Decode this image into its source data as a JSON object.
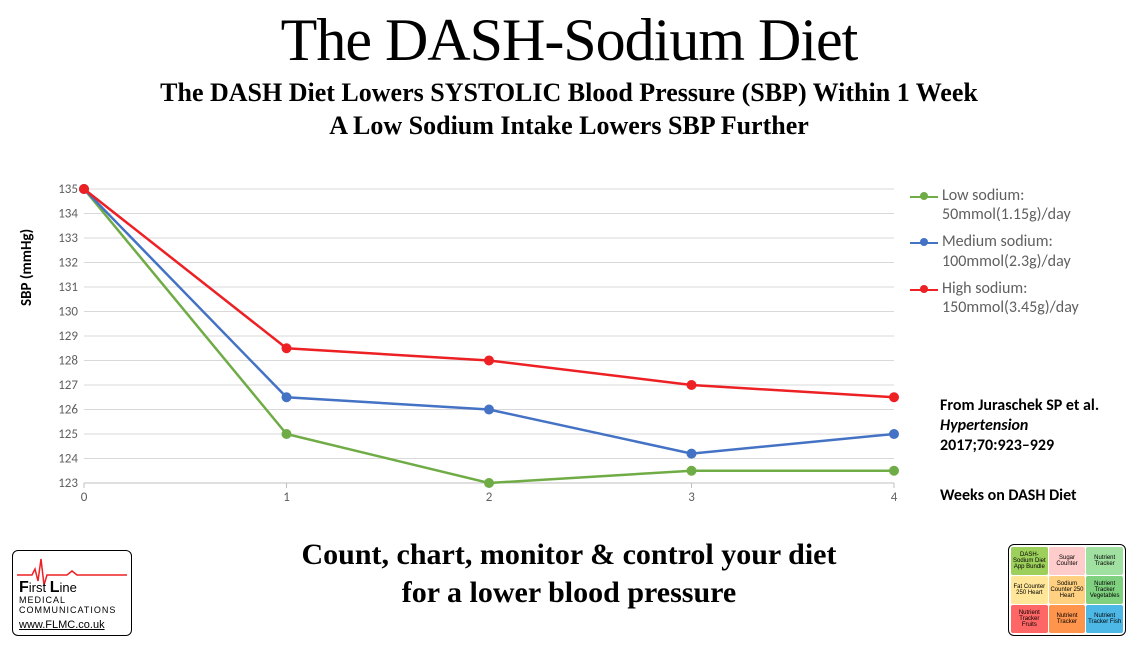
{
  "title": "The DASH-Sodium Diet",
  "subtitle_l1": "The DASH Diet Lowers SYSTOLIC Blood Pressure (SBP) Within 1 Week",
  "subtitle_l2": "A Low Sodium Intake Lowers SBP Further",
  "chart": {
    "type": "line",
    "x": [
      0,
      1,
      2,
      3,
      4
    ],
    "ylim_min": 123,
    "ylim_max": 135,
    "ytick_step": 1,
    "ylabel": "SBP (mmHg)",
    "xlabel": "Weeks on DASH Diet",
    "grid_color": "#d9d9d9",
    "axis_color": "#bfbfbf",
    "tick_color": "#5f5f5f",
    "line_width": 2.5,
    "marker_radius": 5,
    "series": [
      {
        "key": "low",
        "label": "Low sodium:",
        "sub": "50mmol(1.15g)/day",
        "color": "#6fac46",
        "y": [
          135,
          125,
          123,
          123.5,
          123.5
        ]
      },
      {
        "key": "medium",
        "label": "Medium sodium:",
        "sub": "100mmol(2.3g)/day",
        "color": "#4472c4",
        "y": [
          135,
          126.5,
          126,
          124.2,
          125
        ]
      },
      {
        "key": "high",
        "label": "High sodium:",
        "sub": "150mmol(3.45g)/day",
        "color": "#ed2024",
        "y": [
          135,
          128.5,
          128,
          127,
          126.5
        ]
      }
    ]
  },
  "citation_l1": "From Juraschek SP et al.",
  "citation_l2": "Hypertension",
  "citation_l3": "2017;70:923–929",
  "tagline_l1": "Count, chart, monitor & control your diet",
  "tagline_l2": "for a lower blood pressure",
  "logo_left": {
    "line1": "First Line",
    "line2": "MEDICAL  COMMUNICATIONS",
    "url": "www.FLMC.co.uk",
    "ecg_color": "#ed2024"
  },
  "logo_right": {
    "tiles": [
      {
        "bg": "#9dd05a",
        "txt": "DASH-Sodium Diet App Bundle"
      },
      {
        "bg": "#ffcccc",
        "txt": "Sugar Counter"
      },
      {
        "bg": "#a0e0a0",
        "txt": "Nutrient Tracker"
      },
      {
        "bg": "#ffe699",
        "txt": "Fat Counter 250 Heart"
      },
      {
        "bg": "#ffd080",
        "txt": "Sodium Counter 250 Heart"
      },
      {
        "bg": "#7fd07f",
        "txt": "Nutrient Tracker Vegetables"
      },
      {
        "bg": "#ff6666",
        "txt": "Nutrient Tracker Fruits"
      },
      {
        "bg": "#ff944d",
        "txt": "Nutrient Tracker"
      },
      {
        "bg": "#4db8e6",
        "txt": "Nutrient Tracker Fish"
      }
    ]
  }
}
